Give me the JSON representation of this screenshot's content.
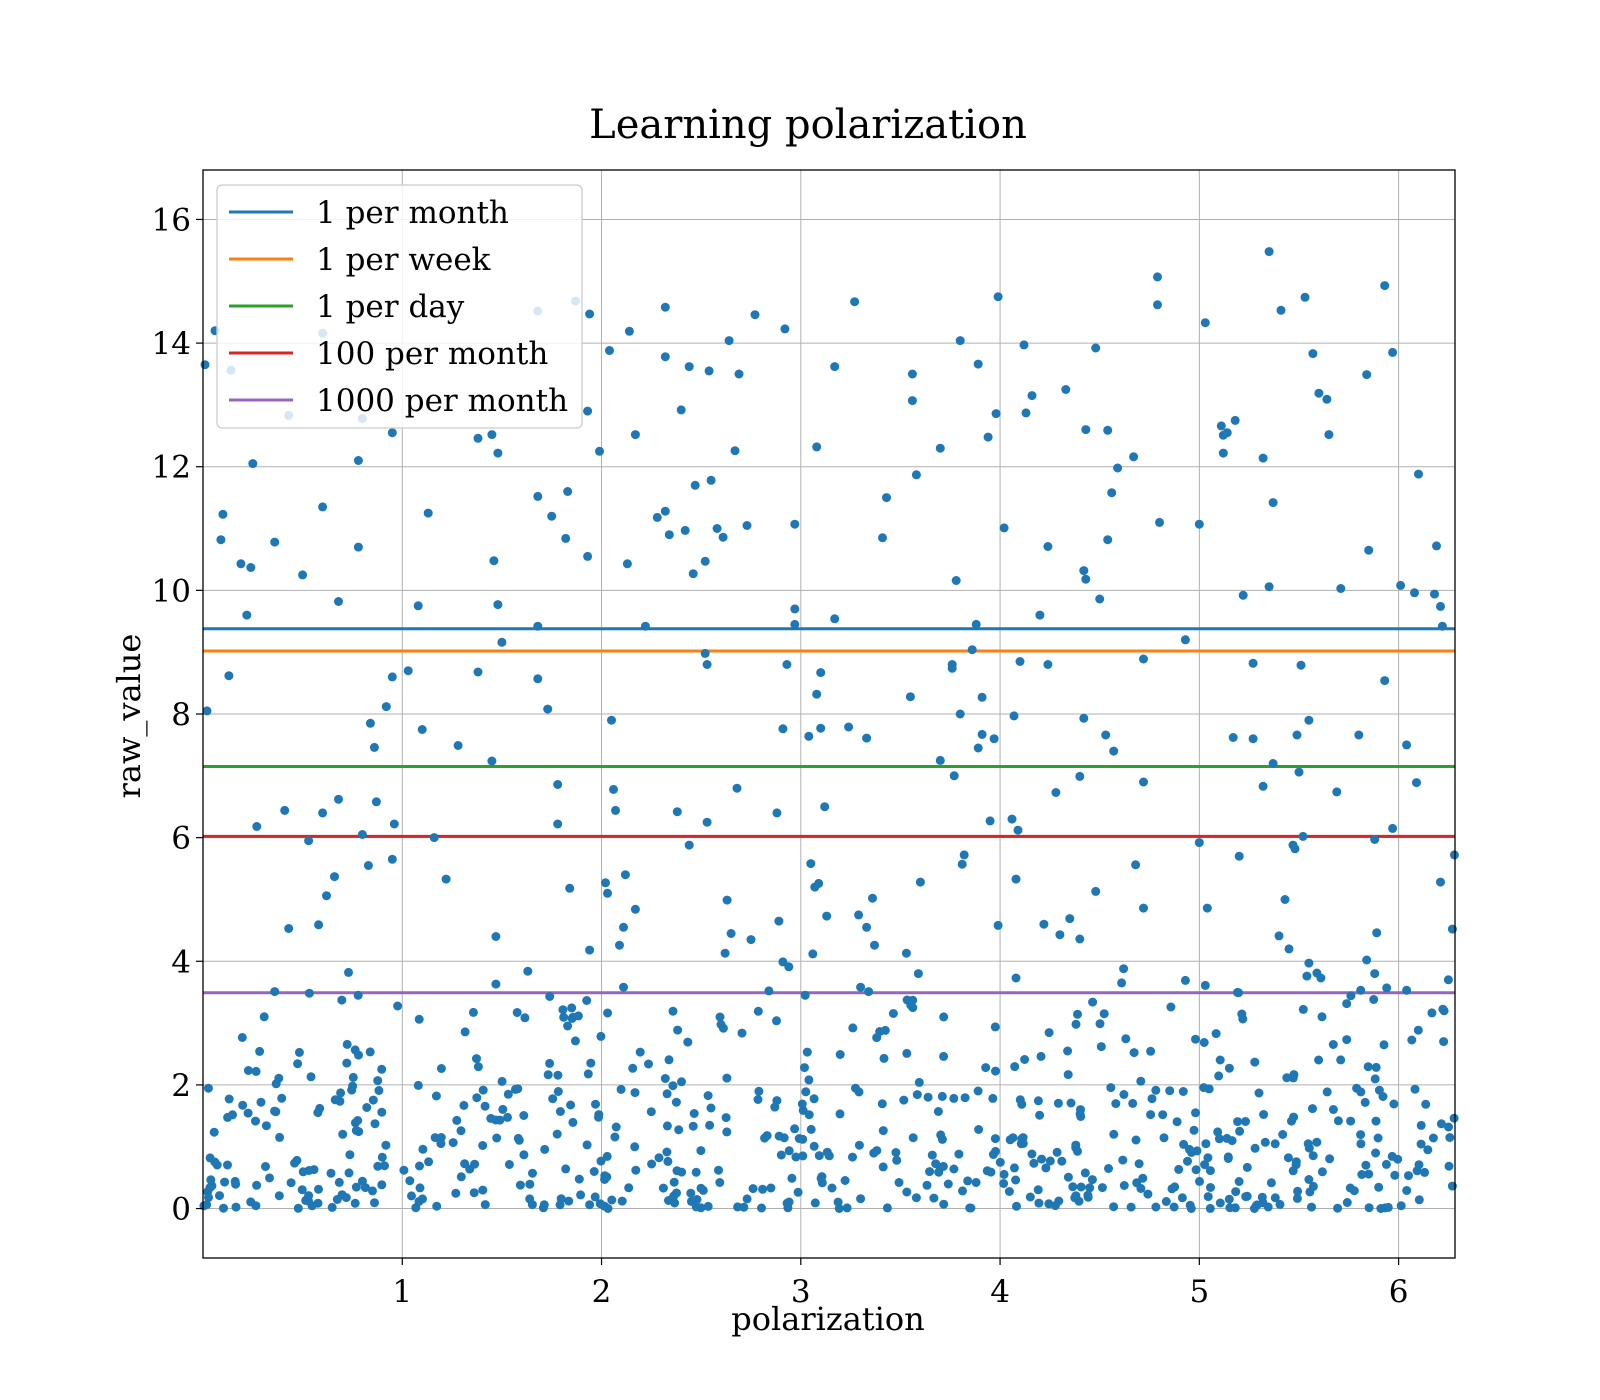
{
  "chart_data": {
    "type": "scatter",
    "title": "Learning polarization",
    "xlabel": "polarization",
    "ylabel": "raw_value",
    "xlim": [
      0,
      6.283
    ],
    "ylim": [
      -0.8,
      16.8
    ],
    "xticks": [
      1,
      2,
      3,
      4,
      5,
      6
    ],
    "yticks": [
      0,
      2,
      4,
      6,
      8,
      10,
      12,
      14,
      16
    ],
    "grid": true,
    "legend_position": "top-left",
    "point_color": "#1f77b4",
    "hlines": [
      {
        "name": "1 per month",
        "y": 9.38,
        "color": "#1f77b4"
      },
      {
        "name": "1 per week",
        "y": 9.02,
        "color": "#ff7f0e"
      },
      {
        "name": "1 per day",
        "y": 7.15,
        "color": "#2ca02c"
      },
      {
        "name": "100 per month",
        "y": 6.02,
        "color": "#d62728"
      },
      {
        "name": "1000 per month",
        "y": 3.49,
        "color": "#9467bd"
      }
    ],
    "points_high": [
      [
        0.01,
        13.65
      ],
      [
        0.06,
        14.2
      ],
      [
        0.1,
        11.23
      ],
      [
        0.09,
        10.82
      ],
      [
        0.14,
        13.56
      ],
      [
        0.19,
        10.43
      ],
      [
        0.25,
        12.05
      ],
      [
        0.24,
        10.37
      ],
      [
        0.22,
        9.6
      ],
      [
        0.13,
        8.62
      ],
      [
        0.02,
        8.05
      ],
      [
        0.36,
        10.78
      ],
      [
        0.43,
        12.83
      ],
      [
        0.5,
        10.25
      ],
      [
        0.6,
        14.16
      ],
      [
        0.6,
        11.35
      ],
      [
        0.68,
        9.82
      ],
      [
        0.8,
        12.78
      ],
      [
        0.78,
        12.1
      ],
      [
        0.78,
        10.7
      ],
      [
        0.95,
        12.55
      ],
      [
        1.08,
        9.75
      ],
      [
        1.03,
        8.7
      ],
      [
        1.1,
        7.75
      ],
      [
        0.95,
        8.6
      ],
      [
        0.92,
        8.12
      ],
      [
        0.84,
        7.85
      ],
      [
        0.86,
        7.46
      ],
      [
        0.87,
        6.58
      ],
      [
        0.68,
        6.62
      ],
      [
        0.6,
        6.4
      ],
      [
        0.27,
        6.18
      ],
      [
        0.41,
        6.44
      ],
      [
        0.96,
        6.22
      ],
      [
        0.8,
        6.05
      ],
      [
        1.16,
        6.0
      ],
      [
        0.53,
        5.95
      ],
      [
        0.83,
        5.55
      ],
      [
        0.95,
        5.65
      ],
      [
        0.66,
        5.37
      ],
      [
        0.62,
        5.06
      ],
      [
        1.22,
        5.33
      ],
      [
        0.43,
        4.53
      ],
      [
        0.58,
        4.59
      ],
      [
        0.73,
        3.82
      ],
      [
        0.36,
        3.51
      ],
      [
        1.13,
        11.25
      ],
      [
        1.38,
        12.46
      ],
      [
        1.45,
        12.52
      ],
      [
        1.48,
        12.22
      ],
      [
        1.46,
        10.48
      ],
      [
        1.48,
        9.77
      ],
      [
        1.5,
        9.16
      ],
      [
        1.38,
        8.68
      ],
      [
        1.45,
        7.24
      ],
      [
        1.28,
        7.49
      ],
      [
        1.47,
        4.4
      ],
      [
        1.47,
        3.63
      ],
      [
        1.68,
        14.52
      ],
      [
        1.87,
        14.68
      ],
      [
        1.94,
        14.47
      ],
      [
        1.68,
        11.52
      ],
      [
        1.75,
        11.2
      ],
      [
        1.83,
        11.6
      ],
      [
        1.82,
        10.84
      ],
      [
        1.93,
        10.55
      ],
      [
        1.93,
        12.9
      ],
      [
        1.99,
        12.25
      ],
      [
        1.68,
        9.42
      ],
      [
        1.68,
        8.57
      ],
      [
        1.73,
        8.08
      ],
      [
        1.78,
        6.86
      ],
      [
        1.78,
        6.22
      ],
      [
        1.84,
        5.18
      ],
      [
        1.63,
        3.84
      ],
      [
        1.74,
        3.43
      ],
      [
        1.94,
        4.18
      ],
      [
        2.04,
        13.88
      ],
      [
        2.14,
        14.19
      ],
      [
        2.17,
        12.52
      ],
      [
        2.13,
        10.43
      ],
      [
        2.22,
        9.42
      ],
      [
        2.05,
        7.9
      ],
      [
        2.06,
        6.78
      ],
      [
        2.07,
        6.44
      ],
      [
        2.02,
        5.27
      ],
      [
        2.03,
        5.1
      ],
      [
        2.12,
        5.4
      ],
      [
        2.17,
        4.84
      ],
      [
        2.11,
        4.55
      ],
      [
        2.09,
        4.26
      ],
      [
        2.11,
        3.58
      ],
      [
        2.32,
        14.58
      ],
      [
        2.32,
        13.78
      ],
      [
        2.44,
        13.62
      ],
      [
        2.54,
        13.55
      ],
      [
        2.64,
        14.04
      ],
      [
        2.69,
        13.5
      ],
      [
        2.77,
        14.46
      ],
      [
        2.4,
        12.92
      ],
      [
        2.67,
        12.26
      ],
      [
        2.28,
        11.18
      ],
      [
        2.32,
        11.28
      ],
      [
        2.34,
        10.9
      ],
      [
        2.42,
        10.97
      ],
      [
        2.47,
        11.7
      ],
      [
        2.55,
        11.78
      ],
      [
        2.58,
        11.0
      ],
      [
        2.61,
        10.86
      ],
      [
        2.52,
        10.47
      ],
      [
        2.46,
        10.27
      ],
      [
        2.73,
        11.05
      ],
      [
        2.52,
        8.98
      ],
      [
        2.53,
        8.8
      ],
      [
        2.38,
        6.42
      ],
      [
        2.53,
        6.25
      ],
      [
        2.68,
        6.8
      ],
      [
        2.63,
        4.99
      ],
      [
        2.62,
        4.13
      ],
      [
        2.65,
        4.45
      ],
      [
        2.75,
        4.35
      ],
      [
        2.44,
        5.88
      ],
      [
        2.92,
        14.23
      ],
      [
        2.97,
        11.07
      ],
      [
        2.97,
        9.7
      ],
      [
        2.97,
        9.45
      ],
      [
        2.93,
        8.8
      ],
      [
        2.91,
        7.76
      ],
      [
        2.88,
        6.4
      ],
      [
        2.89,
        4.65
      ],
      [
        2.91,
        3.99
      ],
      [
        2.94,
        3.91
      ],
      [
        2.84,
        3.52
      ],
      [
        3.27,
        14.67
      ],
      [
        3.17,
        13.62
      ],
      [
        3.08,
        12.32
      ],
      [
        3.17,
        9.54
      ],
      [
        3.08,
        8.32
      ],
      [
        3.1,
        8.67
      ],
      [
        3.04,
        7.64
      ],
      [
        3.1,
        7.77
      ],
      [
        3.24,
        7.79
      ],
      [
        3.33,
        7.61
      ],
      [
        3.12,
        6.5
      ],
      [
        3.05,
        5.58
      ],
      [
        3.07,
        5.2
      ],
      [
        3.09,
        5.26
      ],
      [
        3.13,
        4.73
      ],
      [
        3.06,
        4.12
      ],
      [
        3.29,
        4.75
      ],
      [
        3.36,
        5.02
      ],
      [
        3.33,
        4.55
      ],
      [
        3.37,
        4.26
      ],
      [
        3.3,
        3.58
      ],
      [
        3.34,
        3.51
      ],
      [
        3.43,
        11.5
      ],
      [
        3.41,
        10.85
      ],
      [
        3.56,
        13.5
      ],
      [
        3.56,
        13.07
      ],
      [
        3.58,
        11.87
      ],
      [
        3.55,
        8.28
      ],
      [
        3.6,
        5.28
      ],
      [
        3.59,
        3.8
      ],
      [
        3.53,
        4.13
      ],
      [
        3.7,
        12.3
      ],
      [
        3.8,
        14.04
      ],
      [
        3.78,
        10.16
      ],
      [
        3.89,
        13.66
      ],
      [
        3.94,
        12.48
      ],
      [
        3.98,
        12.86
      ],
      [
        3.99,
        14.75
      ],
      [
        4.02,
        11.01
      ],
      [
        3.76,
        8.8
      ],
      [
        3.76,
        8.74
      ],
      [
        3.86,
        9.04
      ],
      [
        3.88,
        9.45
      ],
      [
        3.8,
        8.0
      ],
      [
        3.91,
        7.67
      ],
      [
        3.91,
        8.27
      ],
      [
        3.89,
        7.45
      ],
      [
        3.97,
        7.6
      ],
      [
        3.7,
        7.25
      ],
      [
        3.77,
        7.0
      ],
      [
        3.82,
        5.72
      ],
      [
        3.81,
        5.57
      ],
      [
        3.95,
        6.27
      ],
      [
        4.09,
        6.12
      ],
      [
        4.1,
        8.85
      ],
      [
        4.07,
        7.97
      ],
      [
        4.06,
        6.3
      ],
      [
        3.99,
        4.58
      ],
      [
        4.08,
        5.33
      ],
      [
        4.08,
        3.73
      ],
      [
        4.12,
        13.97
      ],
      [
        4.16,
        13.15
      ],
      [
        4.13,
        12.87
      ],
      [
        4.24,
        10.71
      ],
      [
        4.33,
        13.25
      ],
      [
        4.43,
        12.6
      ],
      [
        4.48,
        13.92
      ],
      [
        4.54,
        12.59
      ],
      [
        4.59,
        11.98
      ],
      [
        4.56,
        11.58
      ],
      [
        4.67,
        12.16
      ],
      [
        4.54,
        10.82
      ],
      [
        4.42,
        10.32
      ],
      [
        4.43,
        10.18
      ],
      [
        4.5,
        9.86
      ],
      [
        4.2,
        9.6
      ],
      [
        4.24,
        8.8
      ],
      [
        4.42,
        7.93
      ],
      [
        4.53,
        7.66
      ],
      [
        4.57,
        7.4
      ],
      [
        4.4,
        6.99
      ],
      [
        4.28,
        6.73
      ],
      [
        4.48,
        5.13
      ],
      [
        4.68,
        5.56
      ],
      [
        4.72,
        4.86
      ],
      [
        4.22,
        4.6
      ],
      [
        4.3,
        4.43
      ],
      [
        4.35,
        4.69
      ],
      [
        4.4,
        4.36
      ],
      [
        4.62,
        3.88
      ],
      [
        4.61,
        3.65
      ],
      [
        4.79,
        15.07
      ],
      [
        4.79,
        14.62
      ],
      [
        4.8,
        11.1
      ],
      [
        4.72,
        8.89
      ],
      [
        4.72,
        6.9
      ],
      [
        4.93,
        9.2
      ],
      [
        5.03,
        14.33
      ],
      [
        5.0,
        11.07
      ],
      [
        5.11,
        12.66
      ],
      [
        5.12,
        12.51
      ],
      [
        5.12,
        12.22
      ],
      [
        5.14,
        12.55
      ],
      [
        5.18,
        12.75
      ],
      [
        5.32,
        12.14
      ],
      [
        5.37,
        11.42
      ],
      [
        5.22,
        9.92
      ],
      [
        5.35,
        10.06
      ],
      [
        5.27,
        8.82
      ],
      [
        5.27,
        7.6
      ],
      [
        5.17,
        7.62
      ],
      [
        5.37,
        7.2
      ],
      [
        5.32,
        6.83
      ],
      [
        5.0,
        5.92
      ],
      [
        5.2,
        5.7
      ],
      [
        5.04,
        4.86
      ],
      [
        4.93,
        3.69
      ],
      [
        5.03,
        3.61
      ],
      [
        5.35,
        15.48
      ],
      [
        5.41,
        14.53
      ],
      [
        5.53,
        14.74
      ],
      [
        5.57,
        13.83
      ],
      [
        5.6,
        13.19
      ],
      [
        5.64,
        13.09
      ],
      [
        5.65,
        12.52
      ],
      [
        5.51,
        8.79
      ],
      [
        5.49,
        7.66
      ],
      [
        5.55,
        7.9
      ],
      [
        5.5,
        7.06
      ],
      [
        5.69,
        6.74
      ],
      [
        5.52,
        6.02
      ],
      [
        5.47,
        5.88
      ],
      [
        5.48,
        5.82
      ],
      [
        5.43,
        5.0
      ],
      [
        5.4,
        4.41
      ],
      [
        5.45,
        4.2
      ],
      [
        5.55,
        3.97
      ],
      [
        5.54,
        3.76
      ],
      [
        5.59,
        3.81
      ],
      [
        5.61,
        3.73
      ],
      [
        5.84,
        13.49
      ],
      [
        5.93,
        14.93
      ],
      [
        5.97,
        13.85
      ],
      [
        6.1,
        11.88
      ],
      [
        5.85,
        10.65
      ],
      [
        5.71,
        10.03
      ],
      [
        6.01,
        10.08
      ],
      [
        6.08,
        9.96
      ],
      [
        6.18,
        9.94
      ],
      [
        6.19,
        10.72
      ],
      [
        6.21,
        9.74
      ],
      [
        6.22,
        9.42
      ],
      [
        5.93,
        8.54
      ],
      [
        5.8,
        7.66
      ],
      [
        6.04,
        7.5
      ],
      [
        6.09,
        6.89
      ],
      [
        5.97,
        6.15
      ],
      [
        5.88,
        5.97
      ],
      [
        6.21,
        5.28
      ],
      [
        6.28,
        5.72
      ],
      [
        6.27,
        4.52
      ],
      [
        5.89,
        4.46
      ],
      [
        5.84,
        4.02
      ],
      [
        5.88,
        3.8
      ],
      [
        5.94,
        3.57
      ],
      [
        6.04,
        3.53
      ],
      [
        6.25,
        3.7
      ],
      [
        5.81,
        3.53
      ]
    ],
    "points_low_note": "approx. 650 further points scattered roughly uniformly in x over 0–6.28, with raw_value concentrated between 0 and 3.5 (denser toward 0)"
  }
}
